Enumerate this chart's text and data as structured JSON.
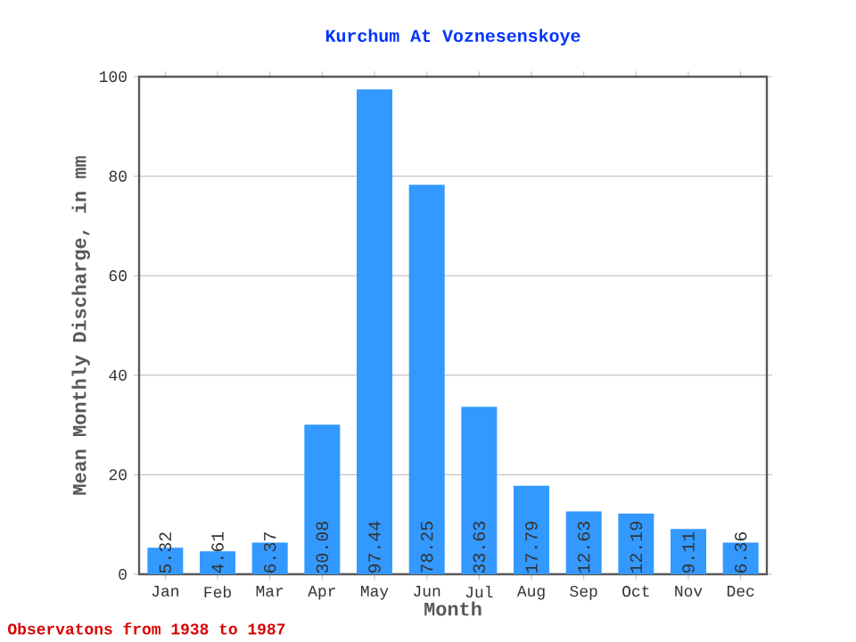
{
  "chart_data": {
    "type": "bar",
    "title": "Kurchum At Voznesenskoye",
    "xlabel": "Month",
    "ylabel": "Mean Monthly Discharge, in mm",
    "categories": [
      "Jan",
      "Feb",
      "Mar",
      "Apr",
      "May",
      "Jun",
      "Jul",
      "Aug",
      "Sep",
      "Oct",
      "Nov",
      "Dec"
    ],
    "values": [
      5.32,
      4.61,
      6.37,
      30.08,
      97.44,
      78.25,
      33.63,
      17.79,
      12.63,
      12.19,
      9.11,
      6.36
    ],
    "color": "#3399ff",
    "ylim": [
      0,
      100
    ],
    "yticks": [
      0,
      20,
      40,
      60,
      80,
      100
    ],
    "grid": "y",
    "data_labels": true,
    "annotations": [
      "Observatons from 1938 to 1987"
    ]
  }
}
